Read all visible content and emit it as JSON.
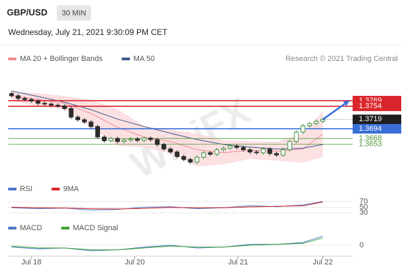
{
  "header": {
    "symbol": "GBP/USD",
    "interval": "30 MIN",
    "timestamp": "Wednesday, July 21, 2021 9:30:09 PM CET",
    "credit": "Research © 2021 Trading Central",
    "watermark": "WikiFX"
  },
  "chart_data": [
    {
      "type": "candlestick",
      "xlim": [
        -0.5,
        51.5
      ],
      "ylim": [
        1.3555,
        1.38
      ],
      "x": [
        0,
        1,
        2,
        3,
        4,
        5,
        6,
        7,
        8,
        9,
        10,
        11,
        12,
        13,
        14,
        15,
        16,
        17,
        18,
        19,
        20,
        21,
        22,
        23,
        24,
        25,
        26,
        27,
        28,
        29,
        30,
        31,
        32,
        33,
        34,
        35,
        36,
        37,
        38,
        39,
        40,
        41,
        42,
        43,
        44,
        45,
        46,
        47
      ],
      "open": [
        1.3788,
        1.3782,
        1.3775,
        1.3772,
        1.3768,
        1.3762,
        1.376,
        1.3757,
        1.3755,
        1.3748,
        1.3725,
        1.3718,
        1.3712,
        1.37,
        1.3672,
        1.3662,
        1.3668,
        1.366,
        1.3664,
        1.3667,
        1.3663,
        1.3669,
        1.3665,
        1.3652,
        1.364,
        1.3632,
        1.362,
        1.3612,
        1.3605,
        1.3618,
        1.363,
        1.3626,
        1.3638,
        1.3642,
        1.3648,
        1.3644,
        1.3638,
        1.3632,
        1.363,
        1.364,
        1.3628,
        1.3624,
        1.3638,
        1.366,
        1.3685,
        1.3702,
        1.3708,
        1.3714
      ],
      "high": [
        1.3793,
        1.3787,
        1.378,
        1.3777,
        1.3773,
        1.3767,
        1.3765,
        1.3762,
        1.376,
        1.3753,
        1.373,
        1.3723,
        1.3717,
        1.3705,
        1.3677,
        1.3673,
        1.3673,
        1.3669,
        1.3672,
        1.3672,
        1.3674,
        1.3674,
        1.367,
        1.3657,
        1.3645,
        1.3637,
        1.3625,
        1.3617,
        1.3623,
        1.3635,
        1.3635,
        1.3643,
        1.3647,
        1.3653,
        1.3653,
        1.3649,
        1.3643,
        1.3637,
        1.3645,
        1.3645,
        1.3633,
        1.3643,
        1.3665,
        1.369,
        1.3707,
        1.3713,
        1.3719,
        1.3724
      ],
      "low": [
        1.3777,
        1.377,
        1.3767,
        1.3763,
        1.3757,
        1.3755,
        1.3752,
        1.375,
        1.3743,
        1.372,
        1.3713,
        1.3707,
        1.3695,
        1.3667,
        1.3657,
        1.3657,
        1.3655,
        1.3655,
        1.3659,
        1.3658,
        1.3658,
        1.366,
        1.3647,
        1.3635,
        1.3627,
        1.3615,
        1.3607,
        1.36,
        1.36,
        1.3613,
        1.3621,
        1.3621,
        1.3633,
        1.3637,
        1.3639,
        1.3633,
        1.3627,
        1.3625,
        1.3625,
        1.3623,
        1.3619,
        1.3619,
        1.3633,
        1.3655,
        1.368,
        1.3697,
        1.3703,
        1.3709
      ],
      "close": [
        1.3782,
        1.3775,
        1.3772,
        1.3768,
        1.3762,
        1.376,
        1.3757,
        1.3755,
        1.3748,
        1.3725,
        1.3718,
        1.3712,
        1.37,
        1.3672,
        1.3662,
        1.3668,
        1.366,
        1.3664,
        1.3667,
        1.3663,
        1.3669,
        1.3665,
        1.3652,
        1.364,
        1.3632,
        1.362,
        1.3612,
        1.3605,
        1.3618,
        1.363,
        1.3626,
        1.3638,
        1.3642,
        1.3648,
        1.3644,
        1.3638,
        1.3632,
        1.363,
        1.364,
        1.3628,
        1.3624,
        1.3638,
        1.366,
        1.3685,
        1.3702,
        1.3708,
        1.3714,
        1.3719
      ],
      "up_color": "#3f8f3f",
      "down_color": "#2b2b2b",
      "series": [
        {
          "name": "MA 20 + Bollinger Bands",
          "color": "#f08b95",
          "band_color": "#fbd9dc",
          "x": [
            0,
            4,
            8,
            12,
            16,
            20,
            24,
            28,
            32,
            36,
            40,
            44,
            47
          ],
          "values": [
            1.3782,
            1.3772,
            1.3762,
            1.3735,
            1.3698,
            1.3672,
            1.366,
            1.3638,
            1.363,
            1.3637,
            1.3634,
            1.364,
            1.368
          ],
          "upper": [
            1.3792,
            1.3788,
            1.378,
            1.377,
            1.3745,
            1.37,
            1.369,
            1.368,
            1.3662,
            1.366,
            1.3658,
            1.368,
            1.374
          ],
          "lower": [
            1.377,
            1.3755,
            1.3748,
            1.37,
            1.365,
            1.3645,
            1.363,
            1.3595,
            1.36,
            1.3615,
            1.361,
            1.3605,
            1.362
          ]
        },
        {
          "name": "MA 50",
          "color": "#3d5a8a",
          "x": [
            0,
            4,
            8,
            12,
            16,
            20,
            24,
            28,
            32,
            36,
            40,
            44,
            47
          ],
          "values": [
            1.3795,
            1.378,
            1.3765,
            1.3745,
            1.372,
            1.37,
            1.3682,
            1.3665,
            1.3652,
            1.3645,
            1.364,
            1.3642,
            1.3652
          ]
        }
      ],
      "levels": [
        {
          "value": 1.3769,
          "color": "#d9262c",
          "style": "box"
        },
        {
          "value": 1.3754,
          "color": "#d9262c",
          "style": "box"
        },
        {
          "value": 1.3719,
          "color": "#1e1e1e",
          "style": "current"
        },
        {
          "value": 1.3694,
          "color": "#3a6fd8",
          "style": "box"
        },
        {
          "value": 1.3668,
          "color": "#4f9a3c",
          "style": "text"
        },
        {
          "value": 1.3653,
          "color": "#4f9a3c",
          "style": "text"
        }
      ],
      "target_color": "#3a6fd8"
    },
    {
      "type": "line",
      "xlim": [
        -0.5,
        51.5
      ],
      "ylim": [
        15,
        85
      ],
      "yticks": [
        30,
        50,
        70
      ],
      "series": [
        {
          "name": "RSI",
          "color": "#4a78c8",
          "x": [
            0,
            4,
            8,
            12,
            16,
            20,
            24,
            28,
            32,
            36,
            40,
            44,
            47
          ],
          "values": [
            48,
            45,
            47,
            40,
            42,
            50,
            52,
            45,
            48,
            55,
            52,
            58,
            70
          ]
        },
        {
          "name": "9MA",
          "color": "#d9262c",
          "x": [
            0,
            4,
            8,
            12,
            16,
            20,
            24,
            28,
            32,
            36,
            40,
            44,
            47
          ],
          "values": [
            50,
            48,
            47,
            45,
            44,
            46,
            49,
            48,
            48,
            51,
            53,
            55,
            68
          ]
        }
      ]
    },
    {
      "type": "line",
      "xlim": [
        -0.5,
        51.5
      ],
      "ylim": [
        -0.0012,
        0.0015
      ],
      "yticks": [
        0
      ],
      "xticks": [
        {
          "value": 3,
          "label": "Jul 18"
        },
        {
          "value": 18.6,
          "label": "Jul 20"
        },
        {
          "value": 34.2,
          "label": "Jul 21"
        },
        {
          "value": 47,
          "label": "Jul 22"
        }
      ],
      "series": [
        {
          "name": "MACD",
          "color": "#4a78c8",
          "x": [
            0,
            4,
            8,
            12,
            16,
            20,
            24,
            28,
            32,
            36,
            40,
            44,
            47
          ],
          "values": [
            -0.0002,
            -0.0004,
            -0.0003,
            -0.0006,
            -0.0005,
            -0.0002,
            0,
            -0.0003,
            -0.0002,
            0.0001,
            0.0001,
            0.0003,
            0.001
          ]
        },
        {
          "name": "MACD Signal",
          "color": "#3aa335",
          "x": [
            0,
            4,
            8,
            12,
            16,
            20,
            24,
            28,
            32,
            36,
            40,
            44,
            47
          ],
          "values": [
            -0.0001,
            -0.0003,
            -0.0003,
            -0.0005,
            -0.0005,
            -0.0003,
            -0.0001,
            -0.0002,
            -0.0002,
            0,
            0.0001,
            0.0002,
            0.0008
          ]
        }
      ]
    }
  ]
}
